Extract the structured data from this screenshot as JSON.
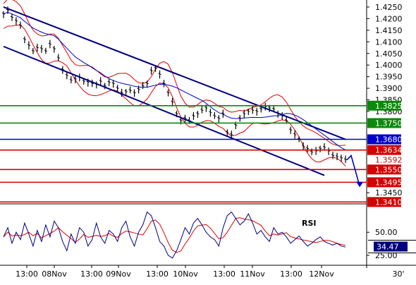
{
  "chart_data": {
    "type": "line",
    "instrument_panel": {
      "y_ticks": [
        1.425,
        1.42,
        1.415,
        1.41,
        1.405,
        1.4,
        1.395,
        1.39,
        1.385,
        1.38,
        1.345
      ],
      "y_tick_labels": [
        "1.4250",
        "1.4200",
        "1.4150",
        "1.4100",
        "1.4050",
        "1.4000",
        "1.3950",
        "1.3900",
        "1.3850",
        "1.3800",
        "1.3450"
      ],
      "ylim": [
        1.3405,
        1.4265
      ],
      "price_series": [
        1.422,
        1.4235,
        1.4205,
        1.419,
        1.417,
        1.411,
        1.4085,
        1.406,
        1.4075,
        1.407,
        1.406,
        1.409,
        1.407,
        1.403,
        1.398,
        1.3955,
        1.3935,
        1.394,
        1.3945,
        1.393,
        1.3925,
        1.392,
        1.3915,
        1.393,
        1.391,
        1.3925,
        1.392,
        1.39,
        1.388,
        1.3885,
        1.389,
        1.388,
        1.3895,
        1.391,
        1.392,
        1.3975,
        1.3985,
        1.396,
        1.392,
        1.388,
        1.384,
        1.379,
        1.376,
        1.377,
        1.376,
        1.378,
        1.379,
        1.3805,
        1.3815,
        1.3795,
        1.378,
        1.377,
        1.379,
        1.371,
        1.37,
        1.374,
        1.377,
        1.379,
        1.38,
        1.3805,
        1.38,
        1.381,
        1.382,
        1.3815,
        1.381,
        1.379,
        1.378,
        1.376,
        1.372,
        1.37,
        1.368,
        1.365,
        1.364,
        1.3625,
        1.363,
        1.364,
        1.3645,
        1.363,
        1.361,
        1.3605,
        1.36,
        1.3592
      ],
      "bollinger_width": 0.0045,
      "moving_average_lag": 12
    },
    "level_lines": [
      {
        "price": 1.3825,
        "label": "1.3825",
        "color": "#0a8a0a",
        "style": "box"
      },
      {
        "price": 1.375,
        "label": "1.3750",
        "color": "#0a8a0a",
        "style": "box"
      },
      {
        "price": 1.368,
        "label": "1.3680",
        "color": "#0000cc",
        "style": "box"
      },
      {
        "price": 1.3634,
        "label": "1.3634",
        "color": "#d40000",
        "style": "box"
      },
      {
        "price": 1.3592,
        "label": "1.3592",
        "color": "#d40000",
        "style": "text"
      },
      {
        "price": 1.355,
        "label": "1.3550",
        "color": "#d40000",
        "style": "box"
      },
      {
        "price": 1.3495,
        "label": "1.3495",
        "color": "#d40000",
        "style": "box"
      },
      {
        "price": 1.341,
        "label": "1.3410",
        "color": "#d40000",
        "style": "box"
      }
    ],
    "channel": {
      "upper": [
        [
          1.425,
          0
        ],
        [
          1.368,
          81
        ]
      ],
      "lower": [
        [
          1.408,
          0
        ],
        [
          1.3525,
          76
        ]
      ],
      "color": "#000080"
    },
    "forecast_arrow": {
      "from_price": 1.361,
      "to_price": 1.348,
      "color": "#0000cc"
    },
    "rsi_panel": {
      "title": "RSI",
      "y_ticks": [
        50.0,
        25.0
      ],
      "y_tick_labels": [
        "50.00",
        "25.00"
      ],
      "ylim": [
        15,
        80
      ],
      "current_value": 34.47,
      "current_label": "34.47",
      "values": [
        45,
        55,
        38,
        50,
        42,
        60,
        48,
        35,
        52,
        40,
        58,
        45,
        62,
        55,
        40,
        30,
        48,
        38,
        55,
        50,
        35,
        42,
        60,
        45,
        38,
        52,
        48,
        40,
        55,
        62,
        45,
        35,
        50,
        58,
        72,
        68,
        55,
        40,
        35,
        25,
        22,
        30,
        42,
        55,
        48,
        60,
        65,
        58,
        50,
        45,
        42,
        35,
        55,
        68,
        72,
        65,
        58,
        62,
        70,
        60,
        48,
        52,
        45,
        40,
        55,
        48,
        50,
        45,
        38,
        42,
        46,
        40,
        35,
        38,
        42,
        45,
        40,
        38,
        36,
        38,
        35,
        34
      ]
    },
    "x_ticks": [
      {
        "label": "13:00"
      },
      {
        "label": "08Nov"
      },
      {
        "label": "13:00"
      },
      {
        "label": "09Nov"
      },
      {
        "label": "13:00"
      },
      {
        "label": "10Nov"
      },
      {
        "label": "13:00"
      },
      {
        "label": "11Nov"
      },
      {
        "label": "13:00"
      },
      {
        "label": "12Nov"
      }
    ],
    "timeframe_label": "30'",
    "colors": {
      "price": "#000000",
      "bollinger": "#e00000",
      "moving_average": "#0000cc",
      "rsi": "#000080",
      "rsi_signal": "#e00000"
    }
  }
}
